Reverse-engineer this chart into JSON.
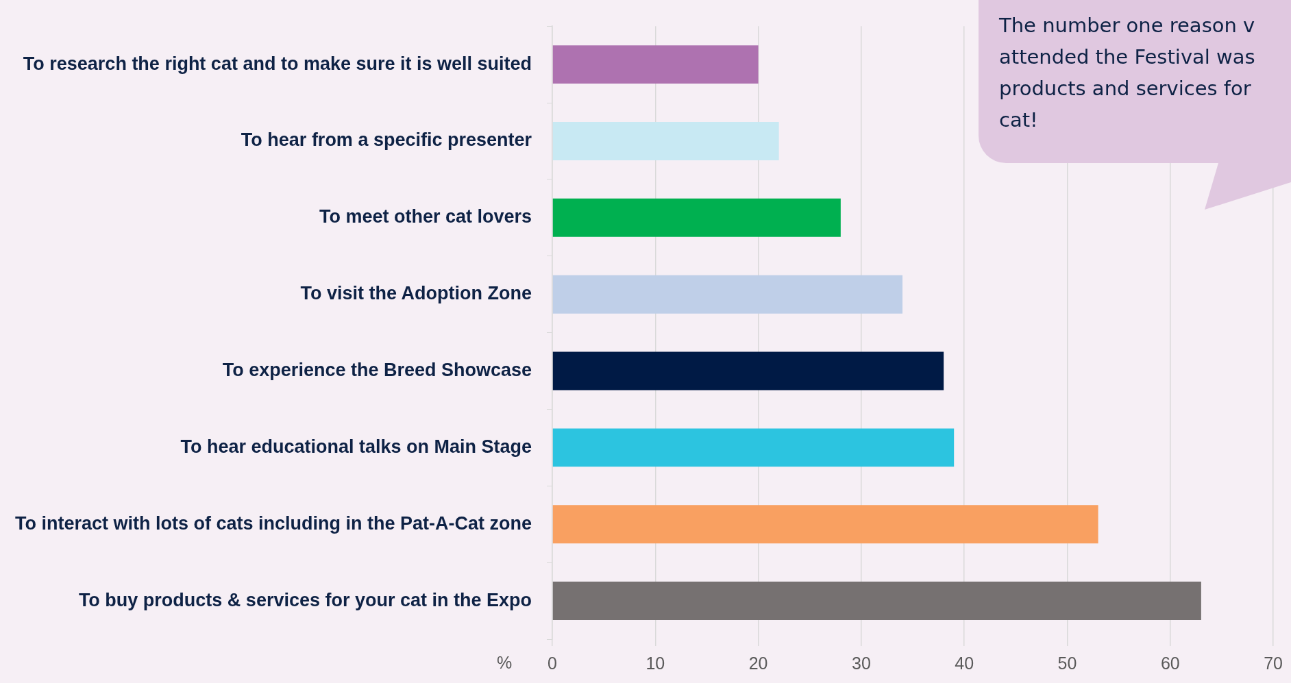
{
  "chart_data": {
    "type": "bar",
    "orientation": "horizontal",
    "xlabel": "%",
    "categories": [
      "To research the right cat and to make sure it is well suited",
      "To hear from a specific presenter",
      "To meet other cat lovers",
      "To visit the Adoption Zone",
      "To experience the Breed Showcase",
      "To hear educational talks on Main Stage",
      "To interact with lots of cats including in the Pat-A-Cat zone",
      "To buy products & services for your cat in the Expo"
    ],
    "values": [
      20,
      22,
      28,
      34,
      38,
      39,
      53,
      63
    ],
    "colors": [
      "#ae72b0",
      "#c8e9f3",
      "#00b050",
      "#bfcfe8",
      "#001a45",
      "#2cc4e0",
      "#f9a061",
      "#767171"
    ],
    "xlim": [
      0,
      70
    ],
    "xticks": [
      0,
      10,
      20,
      30,
      40,
      50,
      60,
      70
    ],
    "grid": "x",
    "legend": false,
    "annotations": [
      "The number one reason v\nattended the Festival was\nproducts and services for\ncat!"
    ]
  }
}
